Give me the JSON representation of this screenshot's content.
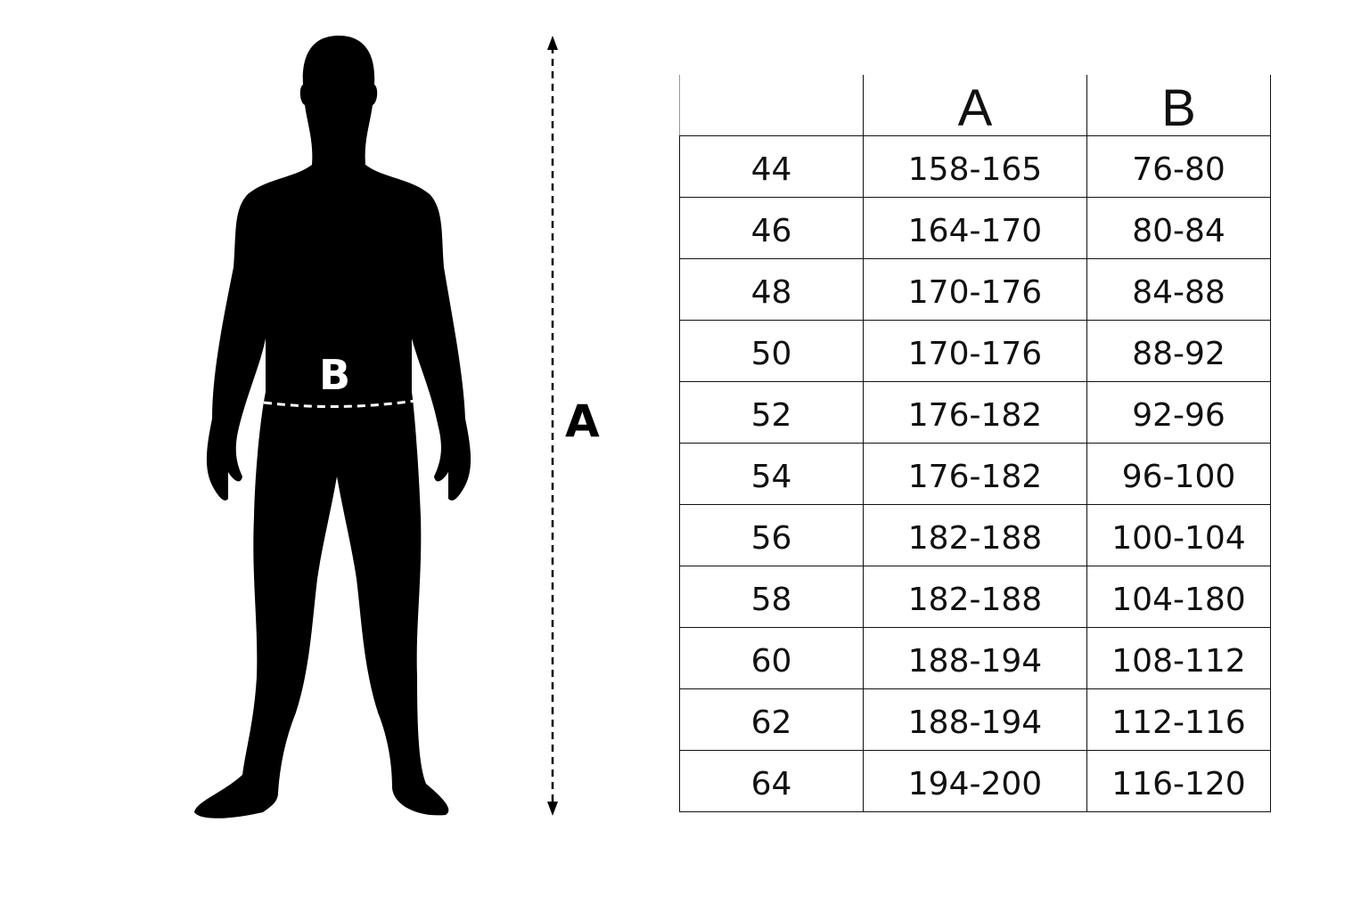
{
  "figure": {
    "waist_label": "B",
    "height_label": "A",
    "silhouette_color": "#000000",
    "waist_line_color": "#ffffff"
  },
  "table": {
    "headers": [
      "",
      "A",
      "B"
    ],
    "rows": [
      [
        "44",
        "158-165",
        "76-80"
      ],
      [
        "46",
        "164-170",
        "80-84"
      ],
      [
        "48",
        "170-176",
        "84-88"
      ],
      [
        "50",
        "170-176",
        "88-92"
      ],
      [
        "52",
        "176-182",
        "92-96"
      ],
      [
        "54",
        "176-182",
        "96-100"
      ],
      [
        "56",
        "182-188",
        "100-104"
      ],
      [
        "58",
        "182-188",
        "104-180"
      ],
      [
        "60",
        "188-194",
        "108-112"
      ],
      [
        "62",
        "188-194",
        "112-116"
      ],
      [
        "64",
        "194-200",
        "116-120"
      ]
    ]
  }
}
